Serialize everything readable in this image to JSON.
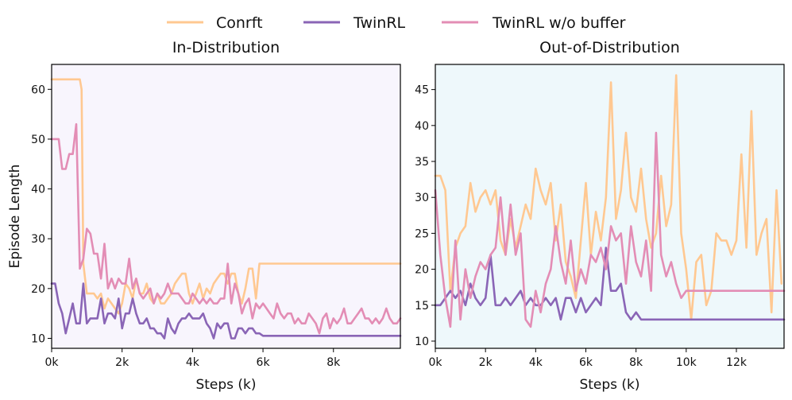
{
  "chart_data": {
    "type": "line",
    "legend": {
      "placement": "top-center",
      "entries": [
        {
          "name": "Conrft",
          "color": "#FFC891"
        },
        {
          "name": "TwinRL",
          "color": "#8A65B6"
        },
        {
          "name": "TwinRL w/o buffer",
          "color": "#E38DB5"
        }
      ]
    },
    "shared_xlabel": "Steps (k)",
    "shared_ylabel": "Episode Length",
    "panels": [
      {
        "title": "In-Distribution",
        "background": "#F8F5FD",
        "xlim": [
          0,
          9900
        ],
        "ylim": [
          8,
          65
        ],
        "xticks": [
          0,
          2000,
          4000,
          6000,
          8000
        ],
        "xtick_labels": [
          "0k",
          "2k",
          "4k",
          "6k",
          "8k"
        ],
        "yticks": [
          10,
          20,
          30,
          40,
          50,
          60
        ],
        "ytick_labels": [
          "10",
          "20",
          "30",
          "40",
          "50",
          "60"
        ],
        "xlabel": "Steps (k)",
        "ylabel": "Episode Length",
        "series": [
          {
            "name": "Conrft",
            "color": "#FFC891",
            "x": [
              0,
              100,
              200,
              300,
              400,
              500,
              600,
              700,
              800,
              850,
              900,
              1000,
              1100,
              1200,
              1300,
              1400,
              1500,
              1600,
              1700,
              1800,
              1900,
              2000,
              2100,
              2200,
              2300,
              2400,
              2500,
              2600,
              2700,
              2800,
              2900,
              3000,
              3100,
              3200,
              3300,
              3400,
              3500,
              3600,
              3700,
              3800,
              3900,
              4000,
              4100,
              4200,
              4300,
              4400,
              4500,
              4600,
              4700,
              4800,
              4900,
              5000,
              5100,
              5200,
              5300,
              5400,
              5500,
              5600,
              5700,
              5800,
              5900,
              6000,
              9900
            ],
            "y": [
              62,
              62,
              62,
              62,
              62,
              62,
              62,
              62,
              62,
              60,
              25,
              19,
              19,
              19,
              18,
              19,
              16,
              18,
              17,
              16,
              15,
              17,
              21,
              20,
              18,
              22,
              19,
              19,
              21,
              18,
              17,
              19,
              17,
              17,
              18,
              19,
              21,
              22,
              23,
              23,
              19,
              17,
              19,
              21,
              18,
              20,
              19,
              21,
              22,
              23,
              23,
              21,
              23,
              23,
              19,
              17,
              20,
              24,
              24,
              18,
              25,
              25,
              25
            ]
          },
          {
            "name": "TwinRL",
            "color": "#8A65B6",
            "x": [
              0,
              100,
              200,
              300,
              400,
              500,
              600,
              700,
              800,
              900,
              1000,
              1100,
              1200,
              1300,
              1400,
              1500,
              1600,
              1700,
              1800,
              1900,
              2000,
              2100,
              2200,
              2300,
              2400,
              2500,
              2600,
              2700,
              2800,
              2900,
              3000,
              3100,
              3200,
              3300,
              3400,
              3500,
              3600,
              3700,
              3800,
              3900,
              4000,
              4100,
              4200,
              4300,
              4400,
              4500,
              4600,
              4700,
              4800,
              4900,
              5000,
              5100,
              5200,
              5300,
              5400,
              5500,
              5600,
              5700,
              5800,
              5900,
              6000,
              9900
            ],
            "y": [
              21,
              21,
              17,
              15,
              11,
              14,
              17,
              13,
              13,
              21,
              13,
              14,
              14,
              14,
              18,
              13,
              15,
              15,
              14,
              18,
              12,
              15,
              15,
              18,
              15,
              13,
              13,
              14,
              12,
              12,
              11,
              11,
              10,
              14,
              12,
              11,
              13,
              14,
              14,
              15,
              14,
              14,
              14,
              15,
              13,
              12,
              10,
              13,
              12,
              13,
              13,
              10,
              10,
              12,
              12,
              11,
              12,
              12,
              11,
              11,
              10.5,
              10.5
            ]
          },
          {
            "name": "TwinRL w/o buffer",
            "color": "#E38DB5",
            "x": [
              0,
              100,
              200,
              300,
              400,
              500,
              600,
              700,
              800,
              850,
              900,
              1000,
              1100,
              1200,
              1300,
              1400,
              1500,
              1600,
              1700,
              1800,
              1900,
              2000,
              2100,
              2200,
              2300,
              2400,
              2500,
              2600,
              2700,
              2800,
              2900,
              3000,
              3100,
              3200,
              3300,
              3400,
              3500,
              3600,
              3700,
              3800,
              3900,
              4000,
              4100,
              4200,
              4300,
              4400,
              4500,
              4600,
              4700,
              4800,
              4900,
              5000,
              5100,
              5200,
              5300,
              5400,
              5500,
              5600,
              5700,
              5800,
              5900,
              6000,
              6100,
              6200,
              6300,
              6400,
              6500,
              6600,
              6700,
              6800,
              6900,
              7000,
              7100,
              7200,
              7300,
              7400,
              7500,
              7600,
              7700,
              7800,
              7900,
              8000,
              8100,
              8200,
              8300,
              8400,
              8500,
              8600,
              8700,
              8800,
              8900,
              9000,
              9100,
              9200,
              9300,
              9400,
              9500,
              9600,
              9700,
              9800,
              9900
            ],
            "y": [
              50,
              50,
              50,
              44,
              44,
              47,
              47,
              53,
              24,
              25,
              26,
              32,
              31,
              27,
              27,
              22,
              29,
              20,
              22,
              20,
              22,
              21,
              21,
              26,
              20,
              22,
              19,
              18,
              19,
              20,
              17,
              19,
              18,
              19,
              21,
              19,
              19,
              19,
              18,
              17,
              17,
              19,
              18,
              17,
              18,
              17,
              18,
              17,
              17,
              18,
              18,
              25,
              17,
              21,
              19,
              15,
              17,
              18,
              14,
              17,
              16,
              17,
              16,
              15,
              14,
              17,
              15,
              14,
              15,
              15,
              13,
              14,
              13,
              13,
              15,
              14,
              13,
              11,
              14,
              15,
              12,
              14,
              13,
              14,
              16,
              13,
              13,
              14,
              15,
              16,
              14,
              14,
              13,
              14,
              13,
              14,
              16,
              14,
              13,
              13,
              14
            ]
          }
        ]
      },
      {
        "title": "Out-of-Distribution",
        "background": "#EEF8FB",
        "xlim": [
          0,
          13900
        ],
        "ylim": [
          9,
          48.5
        ],
        "xticks": [
          0,
          2000,
          4000,
          6000,
          8000,
          10000,
          12000
        ],
        "xtick_labels": [
          "0k",
          "2k",
          "4k",
          "6k",
          "8k",
          "10k",
          "12k"
        ],
        "yticks": [
          10,
          15,
          20,
          25,
          30,
          35,
          40,
          45
        ],
        "ytick_labels": [
          "10",
          "15",
          "20",
          "25",
          "30",
          "35",
          "40",
          "45"
        ],
        "xlabel": "Steps (k)",
        "series": [
          {
            "name": "Conrft",
            "color": "#FFC891",
            "x": [
              0,
              200,
              400,
              600,
              800,
              1000,
              1200,
              1400,
              1600,
              1800,
              2000,
              2200,
              2400,
              2600,
              2800,
              3000,
              3200,
              3400,
              3600,
              3800,
              4000,
              4200,
              4400,
              4600,
              4800,
              5000,
              5200,
              5400,
              5600,
              5800,
              6000,
              6200,
              6400,
              6600,
              6800,
              7000,
              7200,
              7400,
              7600,
              7800,
              8000,
              8200,
              8400,
              8600,
              8800,
              9000,
              9200,
              9400,
              9600,
              9800,
              10000,
              10200,
              10400,
              10600,
              10800,
              11000,
              11200,
              11400,
              11600,
              11800,
              12000,
              12200,
              12400,
              12600,
              12800,
              13000,
              13200,
              13400,
              13600,
              13800
            ],
            "y": [
              33,
              33,
              31,
              17,
              23,
              25,
              26,
              32,
              28,
              30,
              31,
              29,
              31,
              24,
              22,
              27,
              23,
              26,
              29,
              27,
              34,
              31,
              29,
              32,
              24,
              29,
              21,
              19,
              16,
              24,
              32,
              22,
              28,
              24,
              30,
              46,
              27,
              31,
              39,
              30,
              28,
              34,
              27,
              23,
              25,
              33,
              26,
              29,
              47,
              25,
              20,
              13,
              21,
              22,
              15,
              17,
              25,
              24,
              24,
              22,
              24,
              36,
              23,
              42,
              22,
              25,
              27,
              14,
              31,
              18
            ]
          },
          {
            "name": "TwinRL",
            "color": "#8A65B6",
            "x": [
              0,
              200,
              400,
              600,
              800,
              1000,
              1200,
              1400,
              1600,
              1800,
              2000,
              2200,
              2400,
              2600,
              2800,
              3000,
              3200,
              3400,
              3600,
              3800,
              4000,
              4200,
              4400,
              4600,
              4800,
              5000,
              5200,
              5400,
              5600,
              5800,
              6000,
              6200,
              6400,
              6600,
              6800,
              7000,
              7200,
              7400,
              7600,
              7800,
              8000,
              8200,
              8400,
              13900
            ],
            "y": [
              15,
              15,
              16,
              17,
              16,
              17,
              15,
              18,
              16,
              15,
              16,
              22,
              15,
              15,
              16,
              15,
              16,
              17,
              15,
              16,
              15,
              15,
              16,
              15,
              16,
              13,
              16,
              16,
              14,
              16,
              14,
              15,
              16,
              15,
              23,
              17,
              17,
              18,
              14,
              13,
              14,
              13,
              13,
              13
            ]
          },
          {
            "name": "TwinRL w/o buffer",
            "color": "#E38DB5",
            "x": [
              0,
              200,
              400,
              600,
              800,
              1000,
              1200,
              1400,
              1600,
              1800,
              2000,
              2200,
              2400,
              2600,
              2800,
              3000,
              3200,
              3400,
              3600,
              3800,
              4000,
              4200,
              4400,
              4600,
              4800,
              5000,
              5200,
              5400,
              5600,
              5800,
              6000,
              6200,
              6400,
              6600,
              6800,
              7000,
              7200,
              7400,
              7600,
              7800,
              8000,
              8200,
              8400,
              8600,
              8800,
              9000,
              9200,
              9400,
              9600,
              9800,
              10000,
              13900
            ],
            "y": [
              31,
              22,
              16,
              12,
              24,
              13,
              20,
              16,
              19,
              21,
              20,
              22,
              23,
              30,
              22,
              29,
              22,
              25,
              13,
              12,
              17,
              14,
              18,
              20,
              26,
              21,
              18,
              24,
              17,
              20,
              18,
              22,
              21,
              23,
              20,
              26,
              24,
              25,
              18,
              26,
              21,
              19,
              24,
              17,
              39,
              22,
              19,
              21,
              18,
              16,
              17,
              17
            ]
          }
        ]
      }
    ]
  }
}
